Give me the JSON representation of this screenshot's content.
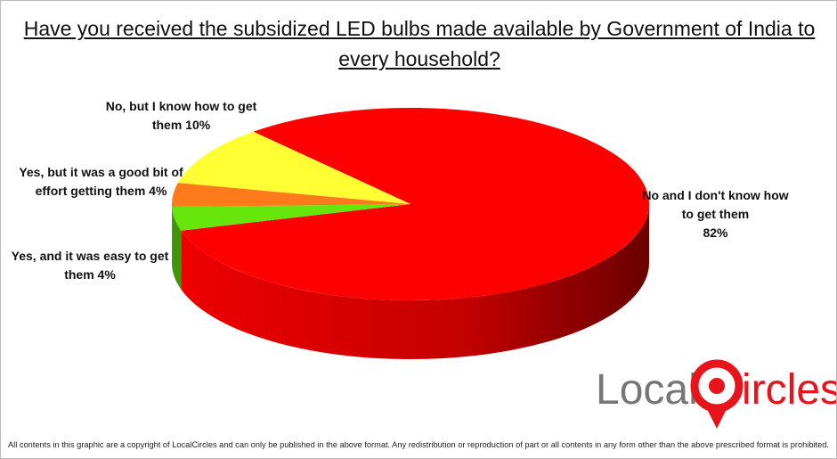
{
  "chart_data": {
    "type": "pie",
    "title": "Have you received the subsidized LED bulbs made available by Government of India to every household?",
    "categories": [
      "No and I don't know how to get them",
      "Yes, and it was easy to get them",
      "Yes, but it was a good bit of effort getting them",
      "No, but I know how to get them"
    ],
    "values": [
      82,
      4,
      4,
      10
    ],
    "value_labels": [
      "82%",
      "4%",
      "4%",
      "10%"
    ],
    "colors": [
      "#ff0000",
      "#66e60a",
      "#ff7a1a",
      "#ffff33"
    ]
  },
  "logo_parts": [
    "Local",
    "ircles"
  ],
  "footer": "All contents in this graphic are a copyright of LocalCircles and can only be published in the above format. Any redistribution or reproduction of part or all contents in any form other than the above prescribed format is prohibited."
}
